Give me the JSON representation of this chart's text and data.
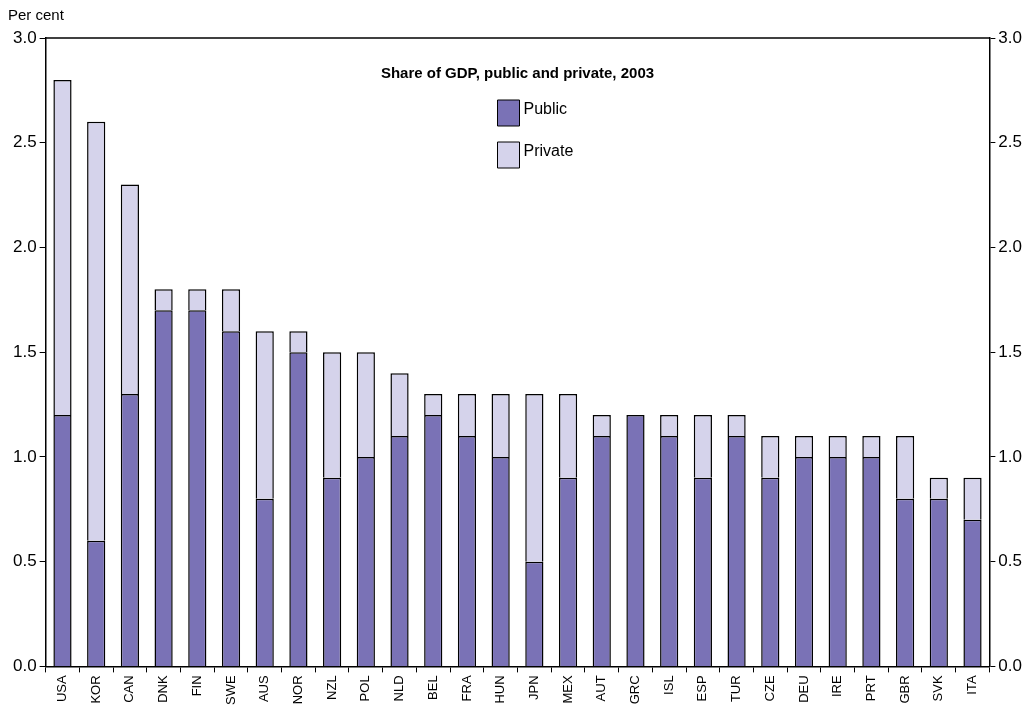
{
  "chart_data": {
    "type": "bar",
    "title": "Share of GDP, public and private, 2003",
    "ylabel": "Per cent",
    "stacked": true,
    "legend": "top",
    "grid": false,
    "categories": [
      "USA",
      "KOR",
      "CAN",
      "DNK",
      "FIN",
      "SWE",
      "AUS",
      "NOR",
      "NZL",
      "POL",
      "NLD",
      "BEL",
      "FRA",
      "HUN",
      "JPN",
      "MEX",
      "AUT",
      "GRC",
      "ISL",
      "ESP",
      "TUR",
      "CZE",
      "DEU",
      "IRE",
      "PRT",
      "GBR",
      "SVK",
      "ITA"
    ],
    "series": [
      {
        "name": "Public",
        "color": "#7a72b6",
        "values": [
          1.2,
          0.6,
          1.3,
          1.7,
          1.7,
          1.6,
          0.8,
          1.5,
          0.9,
          1.0,
          1.1,
          1.2,
          1.1,
          1.0,
          0.5,
          0.9,
          1.1,
          1.2,
          1.1,
          0.9,
          1.1,
          0.9,
          1.0,
          1.0,
          1.0,
          0.8,
          0.8,
          0.7
        ]
      },
      {
        "name": "Private",
        "color": "#d5d3eb",
        "values": [
          1.6,
          2.0,
          1.0,
          0.1,
          0.1,
          0.2,
          0.8,
          0.1,
          0.6,
          0.5,
          0.3,
          0.1,
          0.2,
          0.3,
          0.8,
          0.4,
          0.1,
          0.0,
          0.1,
          0.3,
          0.1,
          0.2,
          0.1,
          0.1,
          0.1,
          0.3,
          0.1,
          0.2
        ]
      }
    ],
    "ylim": [
      0,
      3
    ],
    "yticks": [
      {
        "value": 0,
        "label": "0.0"
      },
      {
        "value": 0.5,
        "label": "0.5"
      },
      {
        "value": 1,
        "label": "1.0"
      },
      {
        "value": 1.5,
        "label": "1.5"
      },
      {
        "value": 2,
        "label": "2.0"
      },
      {
        "value": 2.5,
        "label": "2.5"
      },
      {
        "value": 3,
        "label": "3.0"
      }
    ],
    "y2lim": [
      0,
      3
    ],
    "y2ticks": [
      {
        "value": 0,
        "label": "0.0"
      },
      {
        "value": 0.5,
        "label": "0.5"
      },
      {
        "value": 1,
        "label": "1.0"
      },
      {
        "value": 1.5,
        "label": "1.5"
      },
      {
        "value": 2,
        "label": "2.0"
      },
      {
        "value": 2.5,
        "label": "2.5"
      },
      {
        "value": 3,
        "label": "3.0"
      }
    ]
  }
}
